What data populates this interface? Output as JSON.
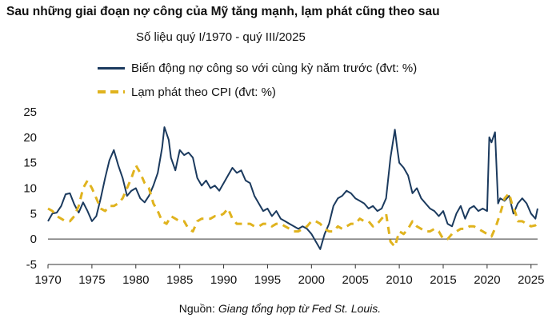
{
  "title": "Sau những giai đoạn nợ công của Mỹ tăng mạnh, lạm phát cũng theo sau",
  "subtitle": "Số liệu quý I/1970 - quý III/2025",
  "source_prefix": "Nguồn: ",
  "source_text": "Giang tổng hợp từ Fed St. Louis.",
  "colors": {
    "debt": "#1b3a5e",
    "cpi": "#e0b31e",
    "axis": "#333333"
  },
  "chart_data": {
    "type": "line",
    "title": "Sau những giai đoạn nợ công của Mỹ tăng mạnh, lạm phát cũng theo sau",
    "subtitle": "Số liệu quý I/1970 - quý III/2025",
    "xlim": [
      1970,
      2025.75
    ],
    "ylim": [
      -5,
      25
    ],
    "xticks": [
      1970,
      1975,
      1980,
      1985,
      1990,
      1995,
      2000,
      2005,
      2010,
      2015,
      2020,
      2025
    ],
    "yticks": [
      -5,
      0,
      5,
      10,
      15,
      20,
      25
    ],
    "grid": false,
    "legend_position": "top",
    "series": [
      {
        "name": "Biến động nợ công so với cùng kỳ năm trước (đvt: %)",
        "style": "solid",
        "points": [
          [
            1970,
            3.5
          ],
          [
            1970.5,
            5
          ],
          [
            1971,
            5.2
          ],
          [
            1971.5,
            6.5
          ],
          [
            1972,
            8.8
          ],
          [
            1972.5,
            9
          ],
          [
            1973,
            6.8
          ],
          [
            1973.5,
            5.2
          ],
          [
            1974,
            7.2
          ],
          [
            1974.5,
            5.5
          ],
          [
            1975,
            3.5
          ],
          [
            1975.5,
            4.5
          ],
          [
            1976,
            8
          ],
          [
            1976.5,
            12
          ],
          [
            1977,
            15.5
          ],
          [
            1977.5,
            17.5
          ],
          [
            1978,
            14.5
          ],
          [
            1978.5,
            12
          ],
          [
            1979,
            8.5
          ],
          [
            1979.5,
            9.5
          ],
          [
            1980,
            10
          ],
          [
            1980.5,
            8
          ],
          [
            1981,
            7.2
          ],
          [
            1981.5,
            8.5
          ],
          [
            1982,
            10.5
          ],
          [
            1982.5,
            13
          ],
          [
            1983,
            18
          ],
          [
            1983.25,
            22
          ],
          [
            1983.75,
            19.5
          ],
          [
            1984,
            16
          ],
          [
            1984.5,
            13.5
          ],
          [
            1985,
            17.5
          ],
          [
            1985.5,
            16.5
          ],
          [
            1986,
            17
          ],
          [
            1986.5,
            16
          ],
          [
            1987,
            12
          ],
          [
            1987.5,
            10.5
          ],
          [
            1988,
            11.5
          ],
          [
            1988.5,
            10
          ],
          [
            1989,
            10.5
          ],
          [
            1989.5,
            9.5
          ],
          [
            1990,
            11
          ],
          [
            1990.5,
            12.5
          ],
          [
            1991,
            14
          ],
          [
            1991.5,
            13
          ],
          [
            1992,
            13.5
          ],
          [
            1992.5,
            11.5
          ],
          [
            1993,
            11
          ],
          [
            1993.5,
            8.5
          ],
          [
            1994,
            7
          ],
          [
            1994.5,
            5.5
          ],
          [
            1995,
            6
          ],
          [
            1995.5,
            4.5
          ],
          [
            1996,
            5.5
          ],
          [
            1996.5,
            4
          ],
          [
            1997,
            3.5
          ],
          [
            1997.5,
            3
          ],
          [
            1998,
            2.5
          ],
          [
            1998.5,
            2
          ],
          [
            1999,
            2.5
          ],
          [
            1999.5,
            2
          ],
          [
            2000,
            1
          ],
          [
            2000.5,
            -0.5
          ],
          [
            2001,
            -2
          ],
          [
            2001.5,
            1
          ],
          [
            2002,
            3
          ],
          [
            2002.5,
            6.5
          ],
          [
            2003,
            8
          ],
          [
            2003.5,
            8.5
          ],
          [
            2004,
            9.5
          ],
          [
            2004.5,
            9
          ],
          [
            2005,
            8
          ],
          [
            2005.5,
            7.5
          ],
          [
            2006,
            7
          ],
          [
            2006.5,
            6
          ],
          [
            2007,
            6.5
          ],
          [
            2007.5,
            5.5
          ],
          [
            2008,
            6
          ],
          [
            2008.5,
            8
          ],
          [
            2009,
            16
          ],
          [
            2009.5,
            21.5
          ],
          [
            2009.75,
            18
          ],
          [
            2010,
            15
          ],
          [
            2010.5,
            14
          ],
          [
            2011,
            12.5
          ],
          [
            2011.5,
            9
          ],
          [
            2012,
            10
          ],
          [
            2012.5,
            8
          ],
          [
            2013,
            7
          ],
          [
            2013.5,
            6
          ],
          [
            2014,
            5.5
          ],
          [
            2014.5,
            4.5
          ],
          [
            2015,
            5.5
          ],
          [
            2015.5,
            3
          ],
          [
            2016,
            2.5
          ],
          [
            2016.5,
            5
          ],
          [
            2017,
            6.5
          ],
          [
            2017.5,
            4
          ],
          [
            2018,
            6
          ],
          [
            2018.5,
            6.5
          ],
          [
            2019,
            5.5
          ],
          [
            2019.5,
            6
          ],
          [
            2020,
            5.5
          ],
          [
            2020.25,
            20
          ],
          [
            2020.5,
            19
          ],
          [
            2020.9,
            21
          ],
          [
            2021.25,
            7
          ],
          [
            2021.5,
            8
          ],
          [
            2022,
            7.5
          ],
          [
            2022.5,
            8.5
          ],
          [
            2023,
            5
          ],
          [
            2023.5,
            7
          ],
          [
            2024,
            8
          ],
          [
            2024.5,
            7
          ],
          [
            2025,
            5
          ],
          [
            2025.5,
            4
          ],
          [
            2025.75,
            6
          ]
        ]
      },
      {
        "name": "Lạm phát theo CPI (đvt: %)",
        "style": "dashed",
        "points": [
          [
            1970,
            6
          ],
          [
            1970.5,
            5.5
          ],
          [
            1971,
            4.5
          ],
          [
            1971.5,
            4
          ],
          [
            1972,
            3.5
          ],
          [
            1972.5,
            3.5
          ],
          [
            1973,
            4.5
          ],
          [
            1973.5,
            6.5
          ],
          [
            1974,
            10
          ],
          [
            1974.5,
            11.5
          ],
          [
            1975,
            10
          ],
          [
            1975.5,
            8
          ],
          [
            1976,
            6
          ],
          [
            1976.5,
            5.5
          ],
          [
            1977,
            6.5
          ],
          [
            1977.5,
            6.5
          ],
          [
            1978,
            7
          ],
          [
            1978.5,
            8
          ],
          [
            1979,
            10
          ],
          [
            1979.5,
            12
          ],
          [
            1980,
            14.5
          ],
          [
            1980.5,
            13
          ],
          [
            1981,
            11
          ],
          [
            1981.5,
            10
          ],
          [
            1982,
            7
          ],
          [
            1982.5,
            5.5
          ],
          [
            1983,
            3.5
          ],
          [
            1983.5,
            3
          ],
          [
            1984,
            4.5
          ],
          [
            1984.5,
            4
          ],
          [
            1985,
            3.5
          ],
          [
            1985.5,
            3.5
          ],
          [
            1986,
            2
          ],
          [
            1986.5,
            1.5
          ],
          [
            1987,
            3.5
          ],
          [
            1987.5,
            4
          ],
          [
            1988,
            4
          ],
          [
            1988.5,
            4
          ],
          [
            1989,
            4.5
          ],
          [
            1989.5,
            4.5
          ],
          [
            1990,
            5
          ],
          [
            1990.5,
            6
          ],
          [
            1991,
            4
          ],
          [
            1991.5,
            3
          ],
          [
            1992,
            3
          ],
          [
            1992.5,
            3
          ],
          [
            1993,
            3
          ],
          [
            1993.5,
            2.5
          ],
          [
            1994,
            2.5
          ],
          [
            1994.5,
            3
          ],
          [
            1995,
            3
          ],
          [
            1995.5,
            2.5
          ],
          [
            1996,
            3
          ],
          [
            1996.5,
            3
          ],
          [
            1997,
            2.5
          ],
          [
            1997.5,
            2
          ],
          [
            1998,
            1.5
          ],
          [
            1998.5,
            1.5
          ],
          [
            1999,
            2
          ],
          [
            1999.5,
            2.5
          ],
          [
            2000,
            3.5
          ],
          [
            2000.5,
            3.5
          ],
          [
            2001,
            3
          ],
          [
            2001.5,
            2
          ],
          [
            2002,
            1.5
          ],
          [
            2002.5,
            1.5
          ],
          [
            2003,
            2.5
          ],
          [
            2003.5,
            2
          ],
          [
            2004,
            2.5
          ],
          [
            2004.5,
            3
          ],
          [
            2005,
            3
          ],
          [
            2005.5,
            4
          ],
          [
            2006,
            3.5
          ],
          [
            2006.5,
            3.5
          ],
          [
            2007,
            2.5
          ],
          [
            2007.5,
            3
          ],
          [
            2008,
            4
          ],
          [
            2008.5,
            5
          ],
          [
            2009,
            -0.5
          ],
          [
            2009.5,
            -1.5
          ],
          [
            2010,
            1.5
          ],
          [
            2010.5,
            1
          ],
          [
            2011,
            2
          ],
          [
            2011.5,
            3.5
          ],
          [
            2012,
            2.5
          ],
          [
            2012.5,
            2
          ],
          [
            2013,
            1.5
          ],
          [
            2013.5,
            1.5
          ],
          [
            2014,
            2
          ],
          [
            2014.5,
            1.5
          ],
          [
            2015,
            0
          ],
          [
            2015.5,
            0
          ],
          [
            2016,
            1
          ],
          [
            2016.5,
            1.5
          ],
          [
            2017,
            2
          ],
          [
            2017.5,
            2
          ],
          [
            2018,
            2.5
          ],
          [
            2018.5,
            2.5
          ],
          [
            2019,
            2
          ],
          [
            2019.5,
            1.5
          ],
          [
            2020,
            1
          ],
          [
            2020.5,
            0.5
          ],
          [
            2021,
            2.5
          ],
          [
            2021.5,
            5
          ],
          [
            2022,
            8
          ],
          [
            2022.5,
            9
          ],
          [
            2022.9,
            6.5
          ],
          [
            2023.25,
            5
          ],
          [
            2023.5,
            3.5
          ],
          [
            2024,
            3.5
          ],
          [
            2024.5,
            3
          ],
          [
            2025,
            2.5
          ],
          [
            2025.5,
            2.7
          ],
          [
            2025.75,
            3
          ]
        ]
      }
    ]
  }
}
